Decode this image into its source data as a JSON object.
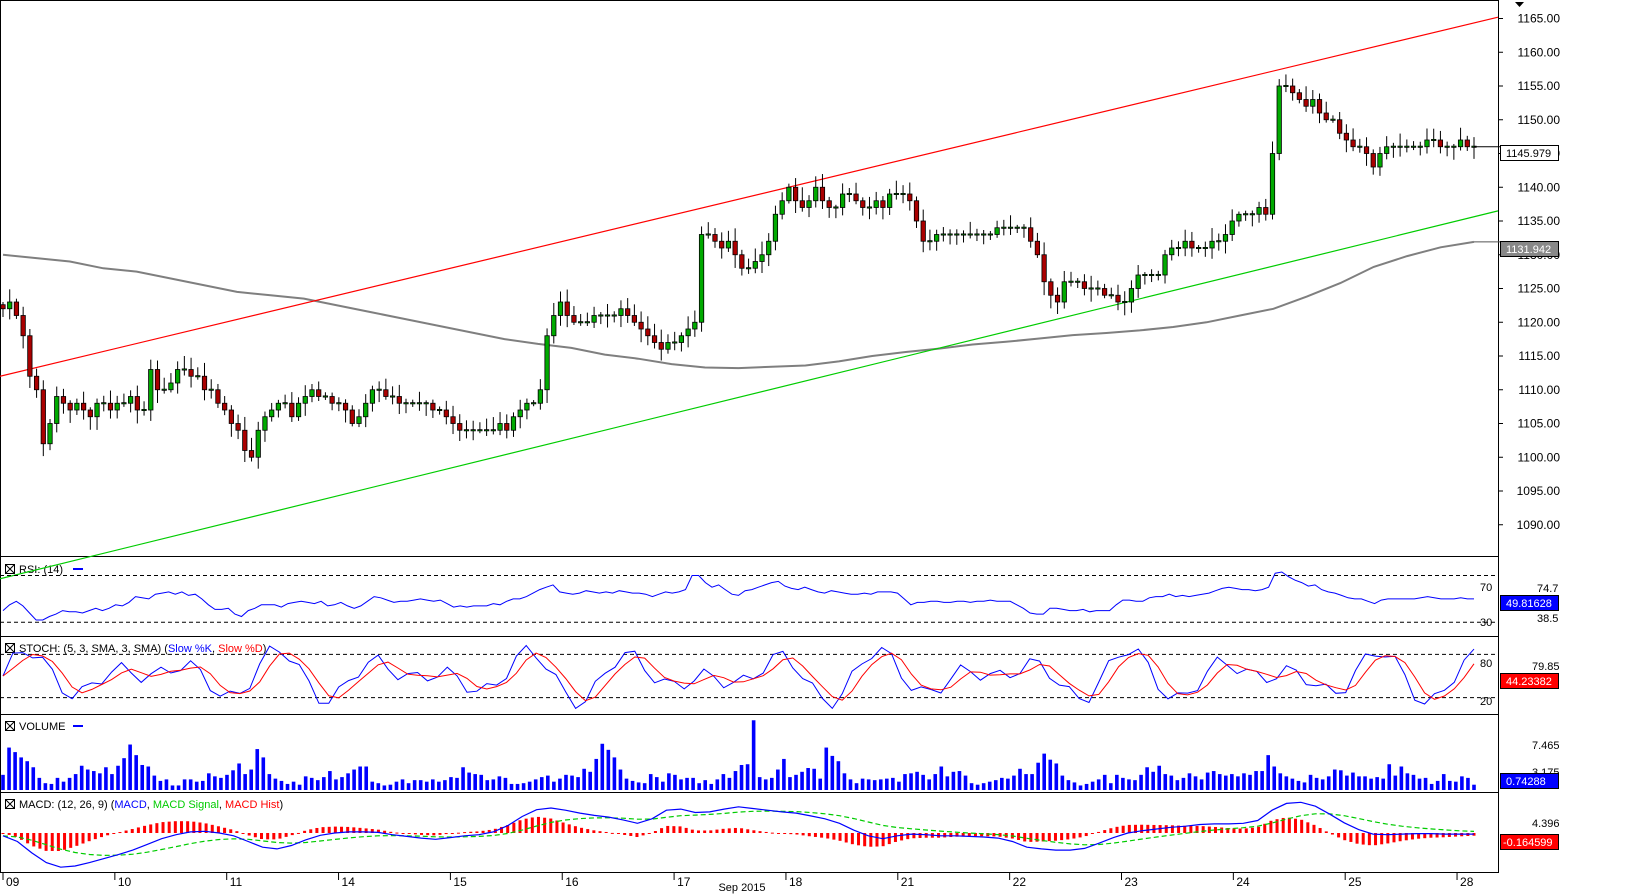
{
  "chart_data": {
    "type": "candlestick",
    "instrument_period": "",
    "x_axis": {
      "day_labels": [
        "09",
        "10",
        "11",
        "14",
        "15",
        "16",
        "17",
        "18",
        "21",
        "22",
        "23",
        "24",
        "25",
        "28"
      ],
      "month_label": "Sep 2015"
    },
    "price_panel": {
      "ylim": [
        1087,
        1167
      ],
      "y_ticks": [
        "1165.00",
        "1160.00",
        "1155.00",
        "1150.00",
        "1145.00",
        "1140.00",
        "1135.00",
        "1130.00",
        "1125.00",
        "1120.00",
        "1115.00",
        "1110.00",
        "1105.00",
        "1100.00",
        "1095.00",
        "1090.00"
      ],
      "last_price_label": "1145.979",
      "moving_average_label": "1131.942",
      "close_series": [
        1122,
        1123,
        1121,
        1118,
        1112,
        1110,
        1102,
        1105,
        1109,
        1108,
        1107,
        1108,
        1107,
        1106,
        1108,
        1108,
        1107,
        1108,
        1108,
        1109,
        1107,
        1107,
        1113,
        1110,
        1110,
        1111,
        1113,
        1113,
        1112,
        1112,
        1110,
        1110,
        1108,
        1107,
        1105,
        1104,
        1101,
        1100,
        1104,
        1106,
        1107,
        1108,
        1108,
        1106,
        1108,
        1109,
        1110,
        1109,
        1109,
        1108,
        1108,
        1107,
        1105,
        1106,
        1108,
        1110,
        1110,
        1109,
        1109,
        1108,
        1108,
        1108,
        1108,
        1108,
        1107,
        1107,
        1106,
        1105,
        1104,
        1104,
        1104,
        1104,
        1104,
        1104,
        1105,
        1104,
        1106,
        1107,
        1108,
        1108,
        1110,
        1118,
        1121,
        1123,
        1121,
        1120,
        1120,
        1120,
        1121,
        1121,
        1121,
        1121,
        1122,
        1121,
        1120,
        1119,
        1118,
        1117,
        1116,
        1117,
        1117,
        1118,
        1119,
        1120,
        1133,
        1133,
        1132,
        1131,
        1132,
        1130,
        1128,
        1128,
        1129,
        1130,
        1132,
        1136,
        1138,
        1140,
        1138,
        1137,
        1138,
        1140,
        1138,
        1137,
        1137,
        1139,
        1139,
        1138,
        1137,
        1137,
        1138,
        1137,
        1139,
        1139,
        1139,
        1138,
        1135,
        1132,
        1132,
        1133,
        1133,
        1133,
        1133,
        1133,
        1133,
        1133,
        1133,
        1133,
        1134,
        1134,
        1134,
        1134,
        1134,
        1132,
        1130,
        1126,
        1124,
        1123,
        1126,
        1126,
        1126,
        1125,
        1125,
        1125,
        1124,
        1124,
        1123,
        1123,
        1125,
        1127,
        1127,
        1127,
        1127,
        1130,
        1131,
        1131,
        1132,
        1131,
        1131,
        1131,
        1132,
        1132,
        1133,
        1135,
        1136,
        1136,
        1136,
        1137,
        1136,
        1145,
        1155,
        1155,
        1154,
        1153,
        1152,
        1153,
        1151,
        1150,
        1150,
        1148,
        1147,
        1146,
        1146,
        1145,
        1143,
        1145,
        1146,
        1146,
        1146,
        1146,
        1146,
        1146,
        1147,
        1147,
        1146,
        1146,
        1146,
        1147,
        1146,
        1146
      ],
      "ma_series": [
        1130,
        1129.5,
        1129,
        1128,
        1127.5,
        1126.5,
        1125.5,
        1124.5,
        1124,
        1123.5,
        1122.5,
        1121.5,
        1120.5,
        1119.5,
        1118.5,
        1117.5,
        1116.8,
        1116.2,
        1115.2,
        1114.6,
        1113.8,
        1113.3,
        1113.2,
        1113.4,
        1113.6,
        1114.2,
        1115,
        1115.6,
        1116.1,
        1116.7,
        1117.1,
        1117.6,
        1118.1,
        1118.4,
        1118.8,
        1119.3,
        1120,
        1121,
        1122,
        1123.8,
        1125.8,
        1128.2,
        1129.8,
        1131.1,
        1131.9
      ],
      "resistance_line": {
        "start": 1112,
        "end": 1165.2
      },
      "support_line": {
        "start": 1082,
        "end": 1136.5
      }
    },
    "rsi": {
      "label": "RSI: (14)",
      "levels": [
        "70",
        "30"
      ],
      "right_values": [
        "74.7",
        "38.5"
      ],
      "current_label": "49.81628",
      "ylim": [
        20,
        85
      ],
      "series": [
        40,
        45,
        48,
        44,
        38,
        32,
        32,
        35,
        37,
        40,
        39,
        39,
        38,
        40,
        42,
        40,
        42,
        45,
        44,
        47,
        52,
        51,
        50,
        54,
        55,
        56,
        54,
        56,
        53,
        54,
        50,
        45,
        41,
        41,
        42,
        37,
        35,
        40,
        42,
        45,
        45,
        45,
        43,
        46,
        47,
        48,
        47,
        46,
        48,
        44,
        45,
        47,
        44,
        42,
        44,
        48,
        52,
        51,
        49,
        47,
        48,
        48,
        49,
        50,
        49,
        48,
        49,
        46,
        43,
        44,
        43,
        44,
        44,
        44,
        46,
        45,
        48,
        50,
        50,
        52,
        55,
        58,
        60,
        62,
        56,
        55,
        54,
        55,
        57,
        56,
        55,
        56,
        55,
        57,
        56,
        55,
        55,
        54,
        52,
        54,
        56,
        55,
        56,
        58,
        70,
        70,
        64,
        60,
        62,
        58,
        54,
        53,
        57,
        58,
        60,
        62,
        64,
        65,
        61,
        59,
        58,
        60,
        58,
        56,
        55,
        57,
        56,
        55,
        54,
        54,
        55,
        54,
        56,
        56,
        56,
        55,
        50,
        45,
        47,
        47,
        48,
        48,
        47,
        47,
        48,
        48,
        47,
        48,
        48,
        49,
        48,
        48,
        48,
        45,
        42,
        38,
        37,
        37,
        42,
        42,
        41,
        40,
        40,
        41,
        39,
        40,
        40,
        40,
        45,
        49,
        49,
        48,
        48,
        51,
        52,
        52,
        54,
        52,
        53,
        52,
        53,
        54,
        55,
        57,
        59,
        60,
        59,
        58,
        58,
        57,
        58,
        60,
        72,
        73,
        69,
        66,
        64,
        61,
        62,
        58,
        56,
        55,
        53,
        51,
        50,
        50,
        48,
        46,
        49,
        50,
        50,
        50,
        50,
        50,
        51,
        52,
        51,
        50,
        50,
        50,
        51,
        50,
        50
      ]
    },
    "stoch": {
      "label": "STOCH: (5, 3, SMA, 3, SMA)",
      "legend": [
        "Slow %K",
        "Slow %D"
      ],
      "levels": [
        "80",
        "20"
      ],
      "right_values": [
        "79.85"
      ],
      "current_label": "44.23382",
      "ylim": [
        0,
        100
      ]
    },
    "volume": {
      "label": "VOLUME",
      "y_ticks": [
        "7.465",
        "3.175"
      ],
      "current_label": "0.74288",
      "ylim": [
        0,
        9.5
      ],
      "series": [
        2,
        5.6,
        5,
        4.3,
        3.8,
        3,
        1.6,
        0.9,
        0.8,
        1.6,
        1.1,
        1.6,
        2.1,
        3.2,
        2.7,
        2.5,
        2.2,
        3,
        2.1,
        3.2,
        4.2,
        6,
        4.6,
        3.3,
        3.1,
        1.9,
        1.2,
        1.4,
        0.6,
        0.6,
        1.4,
        1.4,
        1.1,
        1.2,
        2.2,
        1.8,
        1.6,
        2,
        2.6,
        3.5,
        2.1,
        2.7,
        5.4,
        4.3,
        2.1,
        1.5,
        1.2,
        0.8,
        1.1,
        0.7,
        1.8,
        1.6,
        1.3,
        1.7,
        2.5,
        1.4,
        1.7,
        2.2,
        2.7,
        3.1,
        3.1,
        1.1,
        0.9,
        0.6,
        0.7,
        1.1,
        1.4,
        0.9,
        1.3,
        1.3,
        1.1,
        1.4,
        1.1,
        1.3,
        1.7,
        1.6,
        3,
        2.3,
        2.1,
        2,
        1.3,
        1.4,
        1.8,
        1.6,
        0.8,
        0.8,
        0.9,
        1.1,
        1.4,
        1.7,
        1.9,
        1.1,
        1.5,
        2,
        1.9,
        1.7,
        2.8,
        2.4,
        4.1,
        6.1,
        5.3,
        4.3,
        2.7,
        1.5,
        1.2,
        1,
        0.9,
        2.1,
        1.7,
        1.1,
        2.2,
        2,
        1.4,
        1.6,
        1.6,
        0.9,
        1.3,
        0.8,
        1.4,
        2.1,
        1.6,
        2.5,
        3.3,
        3.4,
        9.2,
        1.7,
        1.4,
        1.6,
        2.7,
        4.1,
        1.7,
        2,
        2.4,
        2.9,
        2.8,
        1.5,
        5.6,
        4.5,
        3.8,
        2.2,
        1.4,
        0.9,
        1.5,
        1.4,
        1.3,
        1.4,
        1.5,
        1.6,
        1.1,
        2.1,
        2.2,
        2.4,
        2,
        1.4,
        2.1,
        3.1,
        1.8,
        2.4,
        2.5,
        1.9,
        0.9,
        0.7,
        0.9,
        1.1,
        1.3,
        1.6,
        1.5,
        1.9,
        2.8,
        2.1,
        2.1,
        3.6,
        4.8,
        4,
        3.5,
        1.9,
        1.3,
        1,
        0.6,
        0.8,
        1.1,
        1.4,
        2,
        0.9,
        2,
        1.6,
        1.4,
        1.3,
        2,
        3,
        2.4,
        3.2,
        2.1,
        1.9,
        1.3,
        1.6,
        2.2,
        1.8,
        1.4,
        2.3,
        2.5,
        2.1,
        1.9,
        2.1,
        1.8,
        2.2,
        2,
        2.5,
        2.5,
        4.6,
        3.1,
        2.2,
        1.8,
        1.5,
        1.2,
        1,
        2,
        1.6,
        1.4,
        1.8,
        2.7,
        2.6,
        1.9,
        2.3,
        1.8,
        1.8,
        1.5,
        1.7,
        1.5,
        3.4,
        1.9,
        3.1,
        2.2,
        2,
        1.5,
        1.6,
        0.8,
        1.2,
        2.1,
        1.2,
        1.1,
        1.8,
        1.6,
        0.7
      ]
    },
    "macd": {
      "label": "MACD: (12, 26, 9)",
      "legend": [
        "MACD",
        "MACD Signal",
        "MACD Hist"
      ],
      "right_values": [
        "4.396"
      ],
      "current_label": "-0.164599",
      "ylim": [
        -6.5,
        6.5
      ],
      "macd_series": [
        -0.5,
        -1.5,
        -3.5,
        -5.2,
        -6,
        -5.8,
        -5.2,
        -4.5,
        -3.8,
        -3,
        -2,
        -1,
        -0.3,
        0.2,
        0.3,
        0,
        -0.5,
        -1.5,
        -2.5,
        -2.8,
        -2.2,
        -1.2,
        -0.4,
        0,
        0.2,
        0.2,
        0.1,
        -0.3,
        -0.6,
        -0.9,
        -1.1,
        -0.8,
        -0.5,
        -0.3,
        0.2,
        1.3,
        2.9,
        4.1,
        4.4,
        4,
        3.5,
        3.1,
        2.8,
        2.3,
        1.7,
        2.5,
        4,
        4.2,
        3.6,
        3.7,
        4.2,
        4.6,
        4.3,
        4,
        3.7,
        3.5,
        3,
        2.5,
        1.7,
        0.5,
        -0.5,
        -1,
        -0.5,
        -0.2,
        -0.3,
        -0.5,
        -0.5,
        -0.6,
        -0.7,
        -0.9,
        -1.5,
        -2.5,
        -2.8,
        -3,
        -3,
        -2.7,
        -1.8,
        -0.8,
        0,
        0.4,
        0.7,
        1,
        1.2,
        1.5,
        1.6,
        1.6,
        1.7,
        2.2,
        4,
        5.2,
        5.4,
        4.7,
        3.3,
        1.8,
        0.6,
        -0.2,
        -0.3,
        -0.2,
        -0.1,
        -0.1,
        -0.2,
        -0.2,
        -0.2
      ]
    }
  }
}
